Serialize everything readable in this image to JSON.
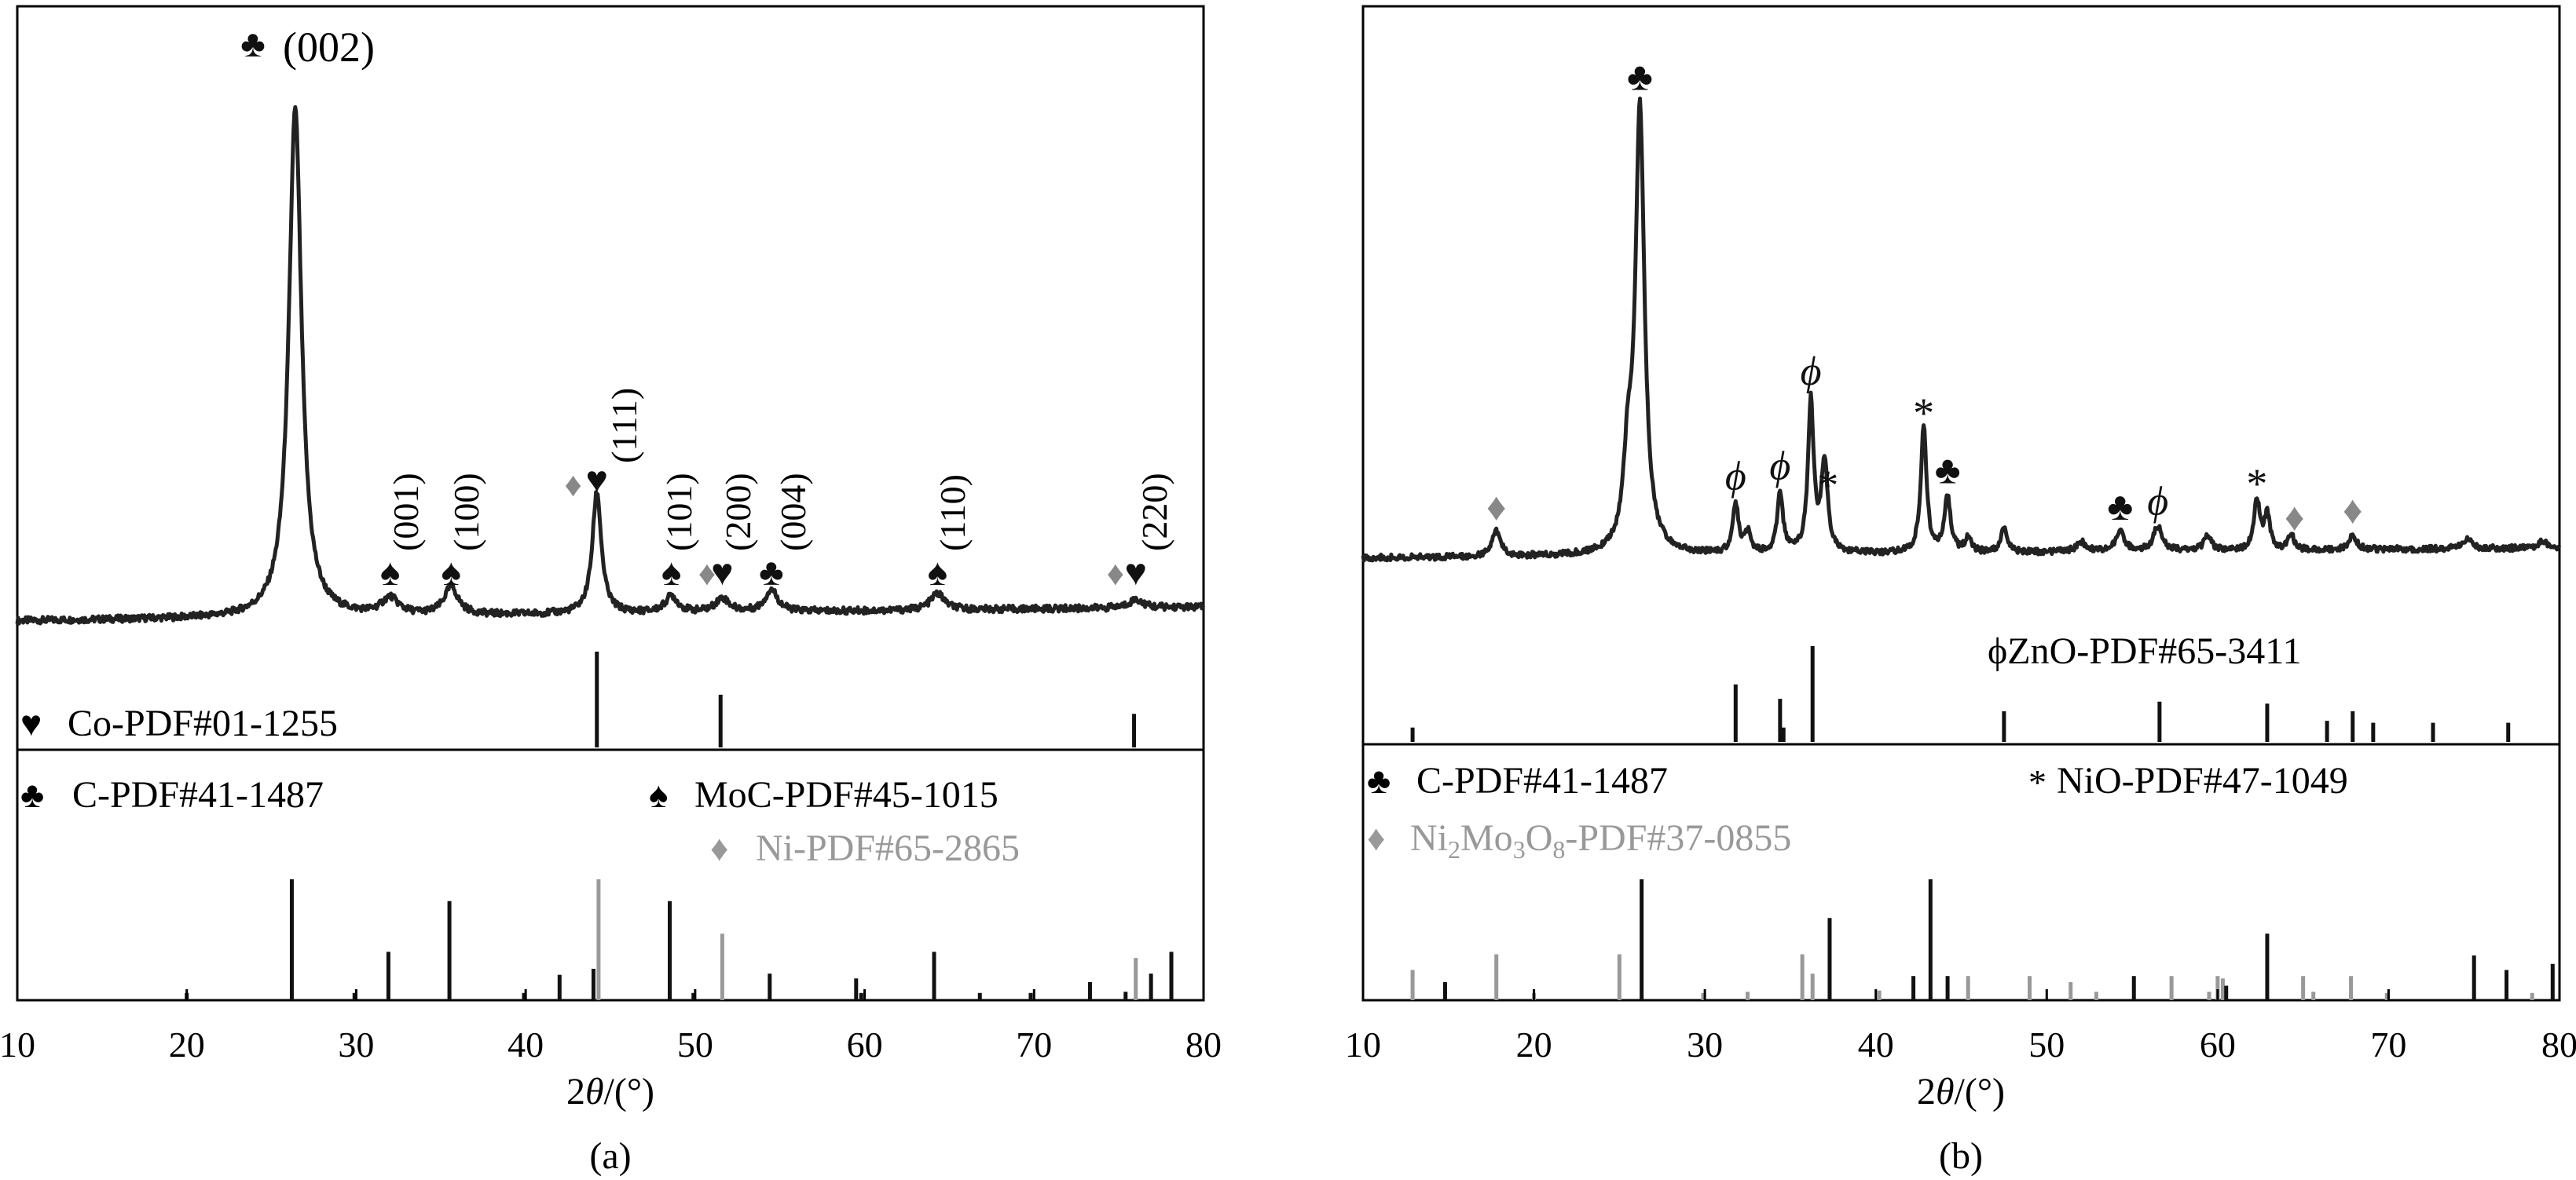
{
  "figure": {
    "panel_a": {
      "caption": "(a)",
      "xlabel_pre": "2",
      "xlabel_theta": "θ",
      "xlabel_post": "/(°)",
      "peak_labels": {
        "p002": "(002)",
        "p001": "(001)",
        "p100": "(100)",
        "p111": "(111)",
        "p101": "(101)",
        "p200": "(200)",
        "p004": "(004)",
        "p110": "(110)",
        "p220": "(220)"
      },
      "legend": {
        "co_symbol": "♥",
        "co_text": "Co-PDF#01-1255",
        "c_symbol": "♣",
        "c_text": "C-PDF#41-1487",
        "moc_symbol": "♠",
        "moc_text": "MoC-PDF#45-1015",
        "ni_symbol": "♦",
        "ni_text": "Ni-PDF#65-2865"
      }
    },
    "panel_b": {
      "caption": "(b)",
      "xlabel_pre": "2",
      "xlabel_theta": "θ",
      "xlabel_post": "/(°)",
      "legend": {
        "zno_text": "ϕZnO-PDF#65-3411",
        "c_symbol": "♣",
        "c_text": "C-PDF#41-1487",
        "nio_symbol": "*",
        "nio_text": "NiO-PDF#47-1049",
        "nimo_symbol": "♦",
        "nimo_text_1": "Ni",
        "nimo_sub_1": "2",
        "nimo_text_2": "Mo",
        "nimo_sub_2": "3",
        "nimo_text_3": "O",
        "nimo_sub_3": "8",
        "nimo_text_4": "-PDF#37-0855"
      }
    }
  },
  "chart_data": [
    {
      "type": "line",
      "panel": "a",
      "xlabel": "2θ/(°)",
      "ylabel": "",
      "xlim": [
        10,
        80
      ],
      "ticks": [
        10,
        20,
        30,
        40,
        50,
        60,
        70,
        80
      ],
      "tick_labels": [
        "10",
        "20",
        "30",
        "40",
        "50",
        "60",
        "70",
        "80"
      ],
      "colors": {
        "pattern": "#222222",
        "ref_black": "#111111",
        "ref_gray": "#999999"
      },
      "pattern_baseline": 0.02,
      "pattern_slope": 0.025,
      "pattern_peaks": [
        [
          26.4,
          0.92,
          0.45
        ],
        [
          32.0,
          0.03,
          0.6
        ],
        [
          35.6,
          0.05,
          0.5
        ],
        [
          44.2,
          0.22,
          0.32
        ],
        [
          48.6,
          0.03,
          0.45
        ],
        [
          51.6,
          0.025,
          0.5
        ],
        [
          54.5,
          0.04,
          0.45
        ],
        [
          64.3,
          0.03,
          0.5
        ],
        [
          76.0,
          0.015,
          0.5
        ]
      ],
      "annotations": [
        {
          "x": 26.4,
          "symbol": "♣",
          "symbol_color": "#111111",
          "label_key": "p002",
          "rotated": false
        },
        {
          "x": 32.0,
          "symbol": "♠",
          "symbol_color": "#111111",
          "label_key": "p001",
          "rotated": true
        },
        {
          "x": 35.6,
          "symbol": "♠",
          "symbol_color": "#111111",
          "label_key": "p100",
          "rotated": true
        },
        {
          "x": 44.2,
          "symbol": "♥",
          "symbol_color": "#111111",
          "label_key": "p111",
          "rotated": true
        },
        {
          "x": 48.6,
          "symbol": "♠",
          "symbol_color": "#111111",
          "label_key": "p101",
          "rotated": true
        },
        {
          "x": 51.6,
          "symbol": "♥",
          "symbol_color": "#111111",
          "label_key": "p200",
          "rotated": true
        },
        {
          "x": 54.5,
          "symbol": "♣",
          "symbol_color": "#111111",
          "label_key": "p004",
          "rotated": true
        },
        {
          "x": 64.3,
          "symbol": "♠",
          "symbol_color": "#111111",
          "label_key": "p110",
          "rotated": true
        },
        {
          "x": 76.0,
          "symbol": "♥",
          "symbol_color": "#111111",
          "label_key": "p220",
          "rotated": true
        }
      ],
      "extra_markers": [
        {
          "x": 42.8,
          "symbol": "♦",
          "color": "#888888"
        },
        {
          "x": 50.7,
          "symbol": "♦",
          "color": "#888888"
        },
        {
          "x": 74.8,
          "symbol": "♦",
          "color": "#888888"
        }
      ],
      "ref_top": [
        {
          "x": 44.2,
          "h": 1.0,
          "gray": false
        },
        {
          "x": 51.5,
          "h": 0.55,
          "gray": false
        },
        {
          "x": 75.9,
          "h": 0.35,
          "gray": false
        }
      ],
      "ref_bottom": [
        {
          "x": 20.0,
          "h": 0.06,
          "gray": false
        },
        {
          "x": 26.2,
          "h": 1.0,
          "gray": false
        },
        {
          "x": 29.9,
          "h": 0.06,
          "gray": false
        },
        {
          "x": 31.9,
          "h": 0.4,
          "gray": false
        },
        {
          "x": 35.5,
          "h": 0.82,
          "gray": false
        },
        {
          "x": 39.9,
          "h": 0.06,
          "gray": false
        },
        {
          "x": 42.0,
          "h": 0.21,
          "gray": false
        },
        {
          "x": 44.0,
          "h": 0.26,
          "gray": false
        },
        {
          "x": 44.3,
          "h": 1.0,
          "gray": true
        },
        {
          "x": 48.5,
          "h": 0.82,
          "gray": false
        },
        {
          "x": 49.9,
          "h": 0.06,
          "gray": false
        },
        {
          "x": 51.6,
          "h": 0.55,
          "gray": true
        },
        {
          "x": 54.4,
          "h": 0.22,
          "gray": false
        },
        {
          "x": 59.5,
          "h": 0.18,
          "gray": false
        },
        {
          "x": 59.8,
          "h": 0.06,
          "gray": false
        },
        {
          "x": 64.1,
          "h": 0.4,
          "gray": false
        },
        {
          "x": 66.8,
          "h": 0.06,
          "gray": false
        },
        {
          "x": 69.8,
          "h": 0.06,
          "gray": false
        },
        {
          "x": 73.3,
          "h": 0.15,
          "gray": false
        },
        {
          "x": 75.4,
          "h": 0.07,
          "gray": false
        },
        {
          "x": 76.0,
          "h": 0.35,
          "gray": true
        },
        {
          "x": 76.9,
          "h": 0.22,
          "gray": false
        },
        {
          "x": 78.1,
          "h": 0.4,
          "gray": false
        }
      ]
    },
    {
      "type": "line",
      "panel": "b",
      "xlabel": "2θ/(°)",
      "ylabel": "",
      "xlim": [
        10,
        80
      ],
      "ticks": [
        10,
        20,
        30,
        40,
        50,
        60,
        70,
        80
      ],
      "tick_labels": [
        "10",
        "20",
        "30",
        "40",
        "50",
        "60",
        "70",
        "80"
      ],
      "colors": {
        "pattern": "#222222",
        "ref_black": "#111111",
        "ref_gray": "#999999"
      },
      "pattern_baseline": 0.03,
      "pattern_slope": 0.02,
      "pattern_peaks": [
        [
          17.8,
          0.05,
          0.3
        ],
        [
          25.5,
          0.16,
          0.3
        ],
        [
          26.2,
          0.88,
          0.32
        ],
        [
          31.8,
          0.1,
          0.2
        ],
        [
          32.5,
          0.04,
          0.2
        ],
        [
          34.4,
          0.12,
          0.2
        ],
        [
          36.2,
          0.3,
          0.2
        ],
        [
          37.0,
          0.18,
          0.22
        ],
        [
          42.8,
          0.25,
          0.2
        ],
        [
          44.2,
          0.11,
          0.22
        ],
        [
          45.4,
          0.03,
          0.2
        ],
        [
          47.5,
          0.05,
          0.2
        ],
        [
          52.0,
          0.02,
          0.3
        ],
        [
          54.3,
          0.04,
          0.3
        ],
        [
          56.5,
          0.05,
          0.3
        ],
        [
          59.4,
          0.03,
          0.25
        ],
        [
          62.3,
          0.1,
          0.2
        ],
        [
          62.9,
          0.07,
          0.2
        ],
        [
          64.3,
          0.03,
          0.2
        ],
        [
          67.9,
          0.03,
          0.25
        ],
        [
          74.6,
          0.02,
          0.3
        ],
        [
          79.0,
          0.015,
          0.3
        ]
      ],
      "annotations": [
        {
          "x": 17.8,
          "symbol": "♦",
          "symbol_color": "#888888"
        },
        {
          "x": 26.2,
          "symbol": "♣",
          "symbol_color": "#111111"
        },
        {
          "x": 31.8,
          "symbol": "ϕ",
          "symbol_color": "#111111"
        },
        {
          "x": 34.4,
          "symbol": "ϕ",
          "symbol_color": "#111111"
        },
        {
          "x": 36.2,
          "symbol": "ϕ",
          "symbol_color": "#111111"
        },
        {
          "x": 37.2,
          "symbol": "*",
          "symbol_color": "#111111"
        },
        {
          "x": 42.8,
          "symbol": "*",
          "symbol_color": "#111111"
        },
        {
          "x": 44.2,
          "symbol": "♣",
          "symbol_color": "#111111"
        },
        {
          "x": 54.3,
          "symbol": "♣",
          "symbol_color": "#111111"
        },
        {
          "x": 56.5,
          "symbol": "ϕ",
          "symbol_color": "#111111"
        },
        {
          "x": 62.3,
          "symbol": "*",
          "symbol_color": "#111111"
        },
        {
          "x": 64.5,
          "symbol": "♦",
          "symbol_color": "#888888"
        },
        {
          "x": 67.9,
          "symbol": "♦",
          "symbol_color": "#888888"
        }
      ],
      "ref_top": [
        {
          "x": 12.9,
          "h": 0.15,
          "gray": false
        },
        {
          "x": 31.8,
          "h": 0.6,
          "gray": false
        },
        {
          "x": 34.4,
          "h": 0.45,
          "gray": false
        },
        {
          "x": 34.6,
          "h": 0.15,
          "gray": false
        },
        {
          "x": 36.3,
          "h": 1.0,
          "gray": false
        },
        {
          "x": 47.5,
          "h": 0.32,
          "gray": false
        },
        {
          "x": 56.6,
          "h": 0.42,
          "gray": false
        },
        {
          "x": 62.9,
          "h": 0.4,
          "gray": false
        },
        {
          "x": 66.4,
          "h": 0.22,
          "gray": false
        },
        {
          "x": 67.9,
          "h": 0.32,
          "gray": false
        },
        {
          "x": 69.1,
          "h": 0.2,
          "gray": false
        },
        {
          "x": 72.6,
          "h": 0.2,
          "gray": false
        },
        {
          "x": 77.0,
          "h": 0.2,
          "gray": false
        }
      ],
      "ref_bottom": [
        {
          "x": 12.9,
          "h": 0.25,
          "gray": true
        },
        {
          "x": 14.8,
          "h": 0.15,
          "gray": false
        },
        {
          "x": 17.8,
          "h": 0.38,
          "gray": true
        },
        {
          "x": 20.0,
          "h": 0.06,
          "gray": true
        },
        {
          "x": 25.0,
          "h": 0.38,
          "gray": true
        },
        {
          "x": 26.3,
          "h": 1.0,
          "gray": false
        },
        {
          "x": 29.9,
          "h": 0.06,
          "gray": true
        },
        {
          "x": 32.5,
          "h": 0.07,
          "gray": true
        },
        {
          "x": 35.7,
          "h": 0.38,
          "gray": true
        },
        {
          "x": 36.3,
          "h": 0.22,
          "gray": true
        },
        {
          "x": 37.3,
          "h": 0.68,
          "gray": false
        },
        {
          "x": 40.2,
          "h": 0.08,
          "gray": true
        },
        {
          "x": 43.2,
          "h": 1.0,
          "gray": false
        },
        {
          "x": 42.2,
          "h": 0.2,
          "gray": false
        },
        {
          "x": 44.2,
          "h": 0.2,
          "gray": false
        },
        {
          "x": 45.4,
          "h": 0.2,
          "gray": true
        },
        {
          "x": 49.0,
          "h": 0.2,
          "gray": true
        },
        {
          "x": 51.4,
          "h": 0.15,
          "gray": true
        },
        {
          "x": 52.9,
          "h": 0.07,
          "gray": true
        },
        {
          "x": 55.1,
          "h": 0.2,
          "gray": false
        },
        {
          "x": 57.3,
          "h": 0.2,
          "gray": true
        },
        {
          "x": 59.5,
          "h": 0.07,
          "gray": true
        },
        {
          "x": 60.0,
          "h": 0.2,
          "gray": true
        },
        {
          "x": 60.3,
          "h": 0.18,
          "gray": true
        },
        {
          "x": 60.5,
          "h": 0.12,
          "gray": false
        },
        {
          "x": 62.9,
          "h": 0.55,
          "gray": false
        },
        {
          "x": 65.0,
          "h": 0.2,
          "gray": true
        },
        {
          "x": 65.6,
          "h": 0.07,
          "gray": true
        },
        {
          "x": 67.8,
          "h": 0.2,
          "gray": true
        },
        {
          "x": 69.9,
          "h": 0.06,
          "gray": true
        },
        {
          "x": 75.0,
          "h": 0.37,
          "gray": false
        },
        {
          "x": 76.9,
          "h": 0.25,
          "gray": false
        },
        {
          "x": 78.4,
          "h": 0.06,
          "gray": true
        },
        {
          "x": 79.6,
          "h": 0.3,
          "gray": false
        }
      ]
    }
  ]
}
